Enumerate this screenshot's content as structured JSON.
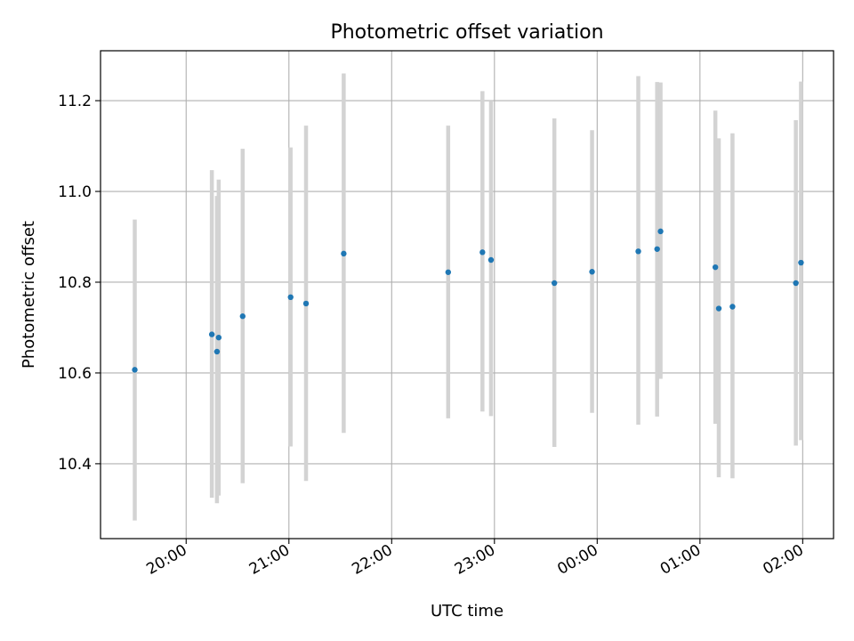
{
  "chart_data": {
    "type": "scatter",
    "title": "Photometric offset variation",
    "xlabel": "UTC time",
    "ylabel": "Photometric offset",
    "x_tick_labels": [
      "20:00",
      "21:00",
      "22:00",
      "23:00",
      "00:00",
      "01:00",
      "02:00"
    ],
    "y_tick_labels": [
      "10.4",
      "10.6",
      "10.8",
      "11.0",
      "11.2"
    ],
    "xlim": [
      "19:10",
      "02:18"
    ],
    "ylim": [
      10.235,
      11.31
    ],
    "grid": true,
    "errorbar_color": "#d3d3d3",
    "marker_color": "#1f77b4",
    "series": [
      {
        "x": [
          "19:30",
          "20:15",
          "20:19",
          "20:18",
          "20:33",
          "21:01",
          "21:10",
          "21:32",
          "22:33",
          "22:53",
          "22:58",
          "23:35",
          "23:57",
          "00:24",
          "00:35",
          "00:37",
          "01:09",
          "01:11",
          "01:19",
          "01:56",
          "01:59"
        ],
        "y": [
          10.607,
          10.685,
          10.678,
          10.647,
          10.725,
          10.767,
          10.753,
          10.863,
          10.822,
          10.866,
          10.849,
          10.798,
          10.823,
          10.868,
          10.873,
          10.912,
          10.833,
          10.742,
          10.746,
          10.798,
          10.843
        ],
        "yerr_low": [
          10.275,
          10.325,
          10.33,
          10.313,
          10.357,
          10.438,
          10.362,
          10.468,
          10.5,
          10.515,
          10.505,
          10.437,
          10.512,
          10.486,
          10.504,
          10.587,
          10.488,
          10.37,
          10.368,
          10.44,
          10.452
        ],
        "yerr_high": [
          10.938,
          11.047,
          11.026,
          10.99,
          11.094,
          11.097,
          11.145,
          11.26,
          11.145,
          11.221,
          11.2,
          11.161,
          11.135,
          11.254,
          11.241,
          11.24,
          11.178,
          11.117,
          11.128,
          11.157,
          11.242
        ]
      }
    ]
  }
}
